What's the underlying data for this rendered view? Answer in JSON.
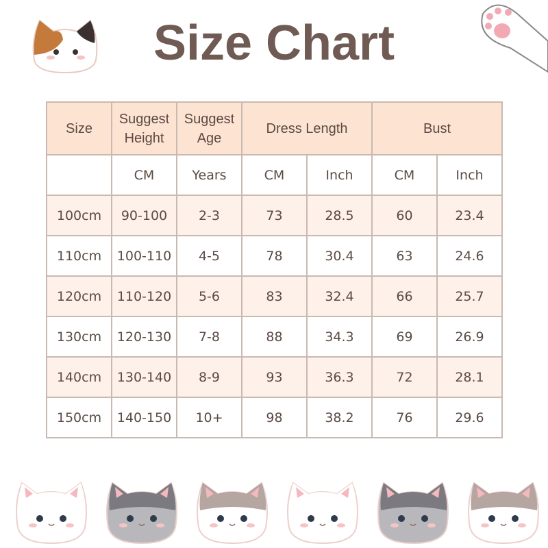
{
  "title": "Size Chart",
  "table": {
    "headers": [
      "Size",
      "Suggest Height",
      "Suggest Age",
      "Dress Length",
      "Bust"
    ],
    "units": [
      "",
      "CM",
      "Years",
      "CM",
      "Inch",
      "CM",
      "Inch"
    ],
    "rows": [
      [
        "100cm",
        "90-100",
        "2-3",
        "73",
        "28.5",
        "60",
        "23.4"
      ],
      [
        "110cm",
        "100-110",
        "4-5",
        "78",
        "30.4",
        "63",
        "24.6"
      ],
      [
        "120cm",
        "110-120",
        "5-6",
        "83",
        "32.4",
        "66",
        "25.7"
      ],
      [
        "130cm",
        "120-130",
        "7-8",
        "88",
        "34.3",
        "69",
        "26.9"
      ],
      [
        "140cm",
        "130-140",
        "8-9",
        "93",
        "36.3",
        "72",
        "28.1"
      ],
      [
        "150cm",
        "140-150",
        "10+",
        "98",
        "38.2",
        "76",
        "29.6"
      ]
    ]
  },
  "colors": {
    "header_fill": "#fde3d2",
    "row_fill": "#fdf1ea",
    "border": "#c9b9b1",
    "text": "#5b4a43"
  },
  "decorations": [
    "calico-cat-icon",
    "cat-paw-icon",
    "white-cat-icon",
    "tabby-cat-icon",
    "gray-cat-icon",
    "white-cat-icon",
    "tabby-cat-icon",
    "gray-cat-icon"
  ]
}
